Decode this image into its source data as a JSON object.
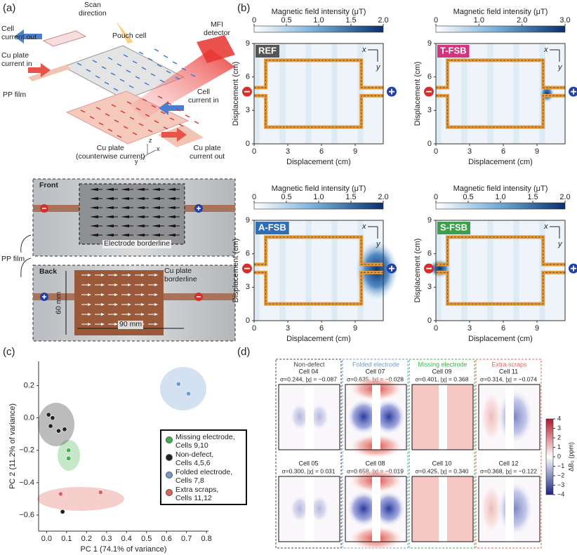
{
  "panel_a": {
    "label": "(a)",
    "schematic": {
      "scan": "Scan\ndirection",
      "cell_out": "Cell\ncurrent out",
      "pouch": "Pouch cell",
      "mfi": "MFI\ndetector",
      "cu_in": "Cu plate\ncurrent in",
      "pp": "PP film",
      "cell_in": "Cell\ncurrent in",
      "cu_plate": "Cu plate\n(counterwise current)",
      "cu_out": "Cu plate\ncurrent out",
      "axes": [
        "x",
        "y",
        "z"
      ]
    },
    "photos": {
      "front": "Front",
      "electrode": "Electrode borderline",
      "back": "Back",
      "cu_border": "Cu plate\nborderline",
      "height": "60 mm",
      "width": "90 mm",
      "pp": "PP film"
    }
  },
  "panel_b": {
    "label": "(b)"
  },
  "panel_c": {
    "label": "(c)"
  },
  "chart_data": [
    {
      "type": "heatmap",
      "name": "REF",
      "tag_color": "#555555",
      "colorbar_title": "Magnetic field intensity (μT)",
      "clim": [
        0,
        2
      ],
      "cticks": [
        0,
        0.5,
        {
          "value": 1,
          "label": "1.0"
        },
        1.5,
        {
          "value": 2,
          "label": "2.0"
        }
      ],
      "xlabel": "Displacement (cm)",
      "ylabel": "Displacement (cm)",
      "xlim": [
        0,
        11.5
      ],
      "ylim": [
        0,
        9
      ],
      "xticks": [
        0,
        3,
        6,
        9
      ],
      "yticks": [
        0,
        3,
        6,
        9
      ],
      "axis_indicator": [
        "x",
        "y"
      ]
    },
    {
      "type": "heatmap",
      "name": "T-FSB",
      "tag_color": "#d6337f",
      "colorbar_title": "Magnetic field intensity (μT)",
      "clim": [
        0,
        3
      ],
      "cticks": [
        0,
        {
          "value": 1,
          "label": "1.0"
        },
        {
          "value": 2,
          "label": "2.0"
        },
        {
          "value": 3,
          "label": "3.0"
        }
      ],
      "xlabel": "Displacement (cm)",
      "ylabel": "Displacement (cm)",
      "xlim": [
        0,
        11.5
      ],
      "ylim": [
        0,
        9
      ],
      "xticks": [
        0,
        3,
        6,
        9
      ],
      "yticks": [
        0,
        3,
        6,
        9
      ],
      "axis_indicator": [
        "x",
        "y"
      ]
    },
    {
      "type": "heatmap",
      "name": "A-FSB",
      "tag_color": "#2f6db5",
      "colorbar_title": "Magnetic field intensity (μT)",
      "clim": [
        0,
        2
      ],
      "cticks": [
        0,
        0.5,
        {
          "value": 1,
          "label": "1.0"
        },
        1.5,
        {
          "value": 2,
          "label": "2.0"
        }
      ],
      "xlabel": "Displacement (cm)",
      "ylabel": "Displacement (cm)",
      "xlim": [
        0,
        11.5
      ],
      "ylim": [
        0,
        9
      ],
      "xticks": [
        0,
        3,
        6,
        9
      ],
      "yticks": [
        0,
        3,
        6,
        9
      ],
      "axis_indicator": [
        "x",
        "y"
      ]
    },
    {
      "type": "heatmap",
      "name": "S-FSB",
      "tag_color": "#3aa04a",
      "colorbar_title": "Magnetic field intensity (μT)",
      "clim": [
        0,
        2
      ],
      "cticks": [
        0,
        0.5,
        {
          "value": 1,
          "label": "1.0"
        },
        1.5,
        {
          "value": 2,
          "label": "2.0"
        }
      ],
      "xlabel": "Displacement (cm)",
      "ylabel": "Displacement (cm)",
      "xlim": [
        0,
        11.5
      ],
      "ylim": [
        0,
        9
      ],
      "xticks": [
        0,
        3,
        6,
        9
      ],
      "yticks": [
        0,
        3,
        6,
        9
      ],
      "axis_indicator": [
        "x",
        "y"
      ]
    },
    {
      "type": "scatter",
      "xlabel": "PC 1 (74.1% of variance)",
      "ylabel": "PC 2 (11.2% of variance)",
      "xlim": [
        -0.04,
        0.81
      ],
      "ylim": [
        -0.7,
        0.35
      ],
      "xticks": [
        {
          "value": 0,
          "label": "0.0"
        },
        0.1,
        0.2,
        0.3,
        0.4,
        0.5,
        0.6,
        0.7,
        0.8
      ],
      "yticks": [
        {
          "value": -0.6,
          "label": "−0.6"
        },
        {
          "value": -0.4,
          "label": "−0.4"
        },
        {
          "value": -0.2,
          "label": "−0.2"
        },
        {
          "value": 0,
          "label": "0.0"
        },
        0.2
      ],
      "series": [
        {
          "name": "Missing electrode,\nCells 9,10",
          "color": "#3bb34a",
          "x": [
            0.11,
            0.11
          ],
          "values": [
            -0.2,
            -0.25
          ]
        },
        {
          "name": "Non-defect,\nCells 4,5,6",
          "color": "#222222",
          "x": [
            0.01,
            0.03,
            0.02,
            0.06,
            0.09,
            0.08
          ],
          "values": [
            0.02,
            0.0,
            -0.05,
            -0.08,
            -0.07,
            -0.58
          ]
        },
        {
          "name": "Folded electrode,\nCells 7,8",
          "color": "#6f9bd1",
          "x": [
            0.66,
            0.71
          ],
          "values": [
            0.21,
            0.15
          ]
        },
        {
          "name": "Extra scraps,\nCells 11,12",
          "color": "#e0605a",
          "x": [
            0.07,
            0.27
          ],
          "values": [
            -0.47,
            -0.46
          ]
        }
      ]
    }
  ],
  "panel_d": {
    "label": "(d)",
    "groups": [
      {
        "title": "Non-defect",
        "color": "#444444",
        "cells": [
          {
            "title": "Cell 04",
            "stats": "σ=0.244, |χ| = −0.087"
          },
          {
            "title": "Cell 05",
            "stats": "σ=0.300, |χ| = 0.031"
          }
        ]
      },
      {
        "title": "Folded electrode",
        "color": "#6f9bd1",
        "cells": [
          {
            "title": "Cell 07",
            "stats": "σ=0.635, |χ| = −0.028"
          },
          {
            "title": "Cell 08",
            "stats": "σ=0.658, |χ| = −0.019"
          }
        ]
      },
      {
        "title": "Missing electrode",
        "color": "#3bb34a",
        "cells": [
          {
            "title": "Cell 09",
            "stats": "σ=0.401, |χ| = 0.368"
          },
          {
            "title": "Cell 10",
            "stats": "σ=0.425, |χ| = 0.340"
          }
        ]
      },
      {
        "title": "Extra scraps",
        "color": "#e0605a",
        "cells": [
          {
            "title": "Cell 11",
            "stats": "σ=0.314, |χ| = −0.074"
          },
          {
            "title": "Cell 12",
            "stats": "σ=0.368, |χ| = −0.122"
          }
        ]
      }
    ],
    "colorbar": {
      "label": "ΔB₀ (ppm)",
      "lim": [
        -4,
        4
      ],
      "ticks": [
        4,
        3,
        2,
        1,
        0,
        {
          "value": -1,
          "label": "−1"
        },
        {
          "value": -2,
          "label": "−2"
        },
        {
          "value": -3,
          "label": "−3"
        },
        {
          "value": -4,
          "label": "−4"
        }
      ]
    }
  }
}
